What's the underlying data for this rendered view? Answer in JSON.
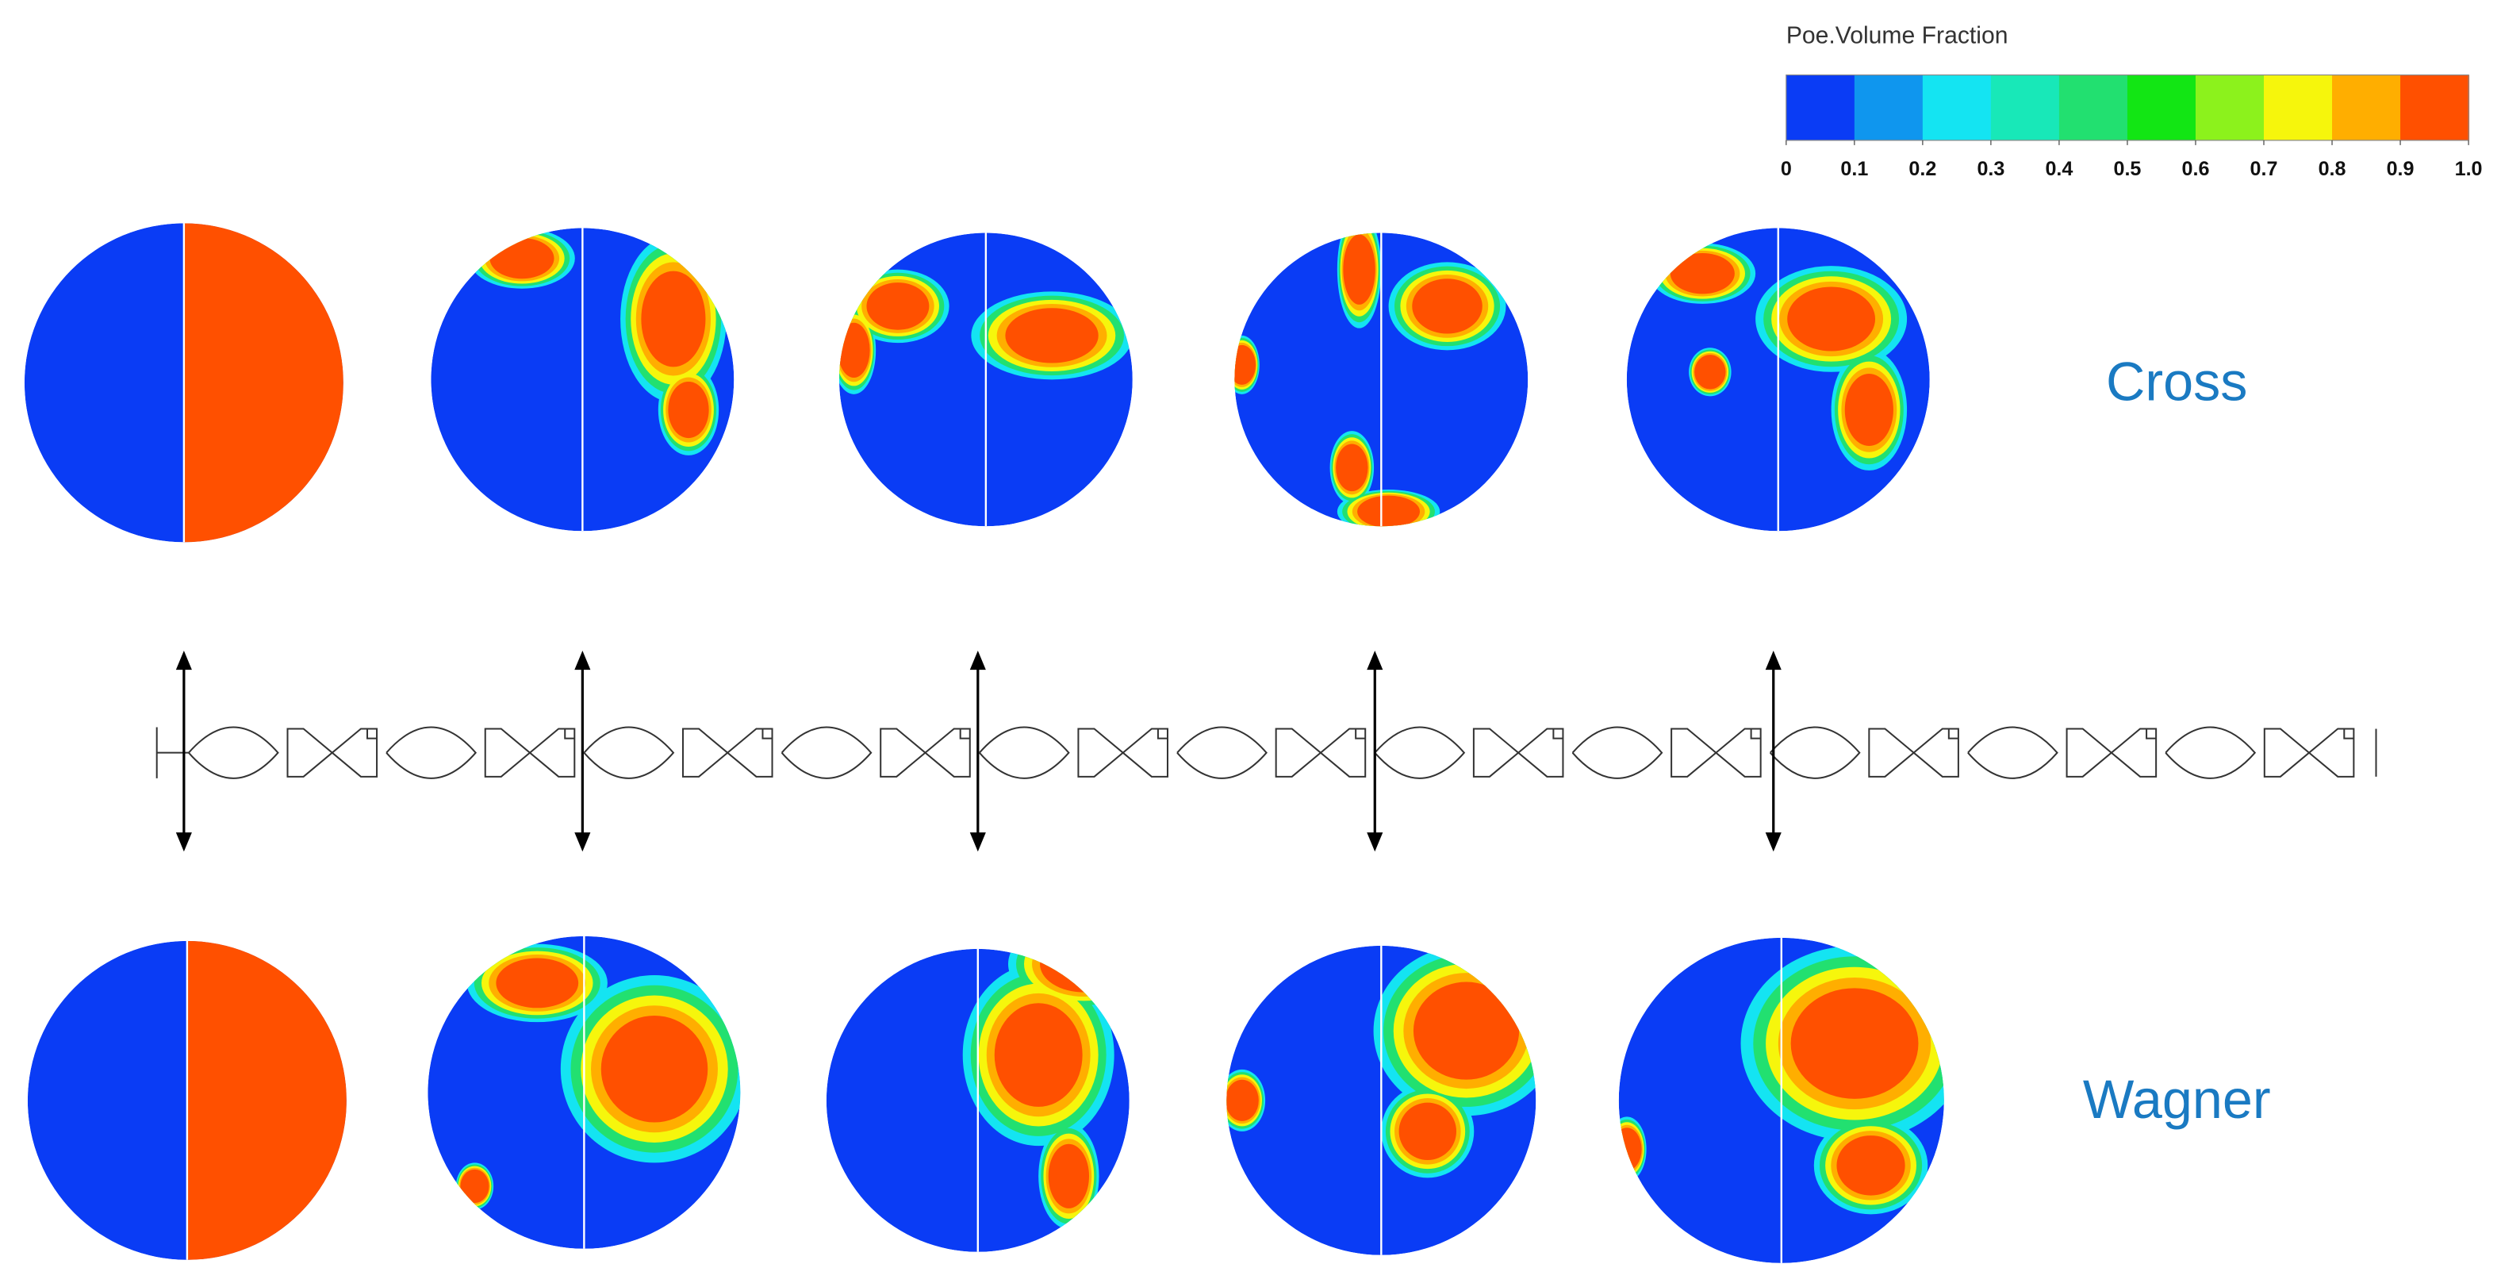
{
  "legend": {
    "title": "Poe.Volume Fraction",
    "colors": [
      "#0a3cf5",
      "#0f96ee",
      "#14e4f2",
      "#18e8b8",
      "#22e070",
      "#12e614",
      "#8cf21c",
      "#f6f60c",
      "#ffae00",
      "#ff5000"
    ],
    "ticks": [
      0,
      0.1,
      0.2,
      0.3,
      0.4,
      0.5,
      0.6,
      0.7,
      0.8,
      0.9,
      {
        "value": 1,
        "label": "1.0"
      }
    ]
  },
  "rows": [
    {
      "label": "Cross"
    },
    {
      "label": "Wagner"
    }
  ]
}
